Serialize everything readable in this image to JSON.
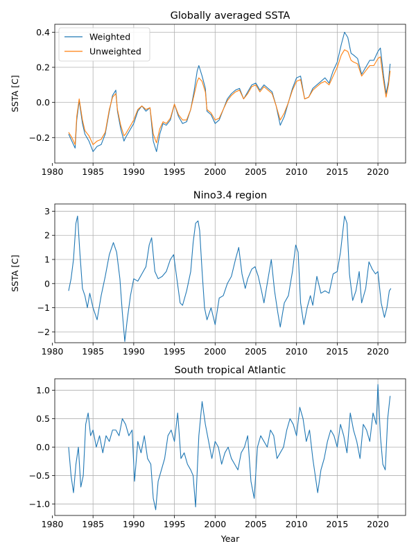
{
  "colors": {
    "weighted": "#1f77b4",
    "unweighted": "#ff7f0e",
    "grid": "#b0b0b0"
  },
  "chart_data": [
    {
      "type": "line",
      "title": "Globally averaged SSTA",
      "xlabel": "",
      "ylabel": "SSTA [C]",
      "xlim": [
        1980.3,
        2023.4
      ],
      "ylim": [
        -0.345,
        0.445
      ],
      "xticks": [
        1980,
        1985,
        1990,
        1995,
        2000,
        2005,
        2010,
        2015,
        2020
      ],
      "xtick_labels": [
        "1980",
        "1985",
        "1990",
        "1995",
        "2000",
        "2005",
        "2010",
        "2015",
        "2020"
      ],
      "yticks": [
        -0.2,
        0.0,
        0.2,
        0.4
      ],
      "ytick_labels": [
        "−0.2",
        "0.0",
        "0.2",
        "0.4"
      ],
      "grid": true,
      "legend": "upper-left",
      "series": [
        {
          "name": "Weighted",
          "color": "#1f77b4",
          "x": [
            1982.0,
            1982.4,
            1982.8,
            1983.0,
            1983.3,
            1983.7,
            1984.0,
            1984.5,
            1985.0,
            1985.5,
            1986.0,
            1986.5,
            1987.0,
            1987.4,
            1987.8,
            1988.0,
            1988.4,
            1988.8,
            1989.0,
            1989.5,
            1990.0,
            1990.5,
            1991.0,
            1991.5,
            1992.0,
            1992.4,
            1992.8,
            1993.2,
            1993.6,
            1994.0,
            1994.5,
            1995.0,
            1995.5,
            1996.0,
            1996.5,
            1997.0,
            1997.4,
            1997.8,
            1998.0,
            1998.4,
            1998.8,
            1999.0,
            1999.5,
            2000.0,
            2000.5,
            2001.0,
            2001.5,
            2002.0,
            2002.5,
            2003.0,
            2003.5,
            2004.0,
            2004.5,
            2005.0,
            2005.5,
            2006.0,
            2006.5,
            2007.0,
            2007.5,
            2008.0,
            2008.5,
            2009.0,
            2009.5,
            2010.0,
            2010.5,
            2011.0,
            2011.5,
            2012.0,
            2012.5,
            2013.0,
            2013.5,
            2014.0,
            2014.5,
            2015.0,
            2015.5,
            2015.9,
            2016.3,
            2016.7,
            2017.0,
            2017.5,
            2018.0,
            2018.5,
            2019.0,
            2019.5,
            2020.0,
            2020.3,
            2020.7,
            2021.0,
            2021.3,
            2021.5
          ],
          "y": [
            -0.18,
            -0.22,
            -0.26,
            -0.1,
            0.01,
            -0.12,
            -0.18,
            -0.22,
            -0.28,
            -0.25,
            -0.24,
            -0.18,
            -0.05,
            0.04,
            0.07,
            -0.05,
            -0.15,
            -0.22,
            -0.2,
            -0.16,
            -0.12,
            -0.05,
            -0.02,
            -0.05,
            -0.03,
            -0.22,
            -0.28,
            -0.18,
            -0.12,
            -0.13,
            -0.1,
            -0.01,
            -0.08,
            -0.12,
            -0.11,
            -0.04,
            0.06,
            0.18,
            0.21,
            0.15,
            0.08,
            -0.05,
            -0.07,
            -0.12,
            -0.1,
            -0.04,
            0.02,
            0.05,
            0.07,
            0.08,
            0.02,
            0.06,
            0.1,
            0.11,
            0.07,
            0.1,
            0.08,
            0.06,
            -0.02,
            -0.13,
            -0.08,
            0.0,
            0.08,
            0.14,
            0.15,
            0.02,
            0.03,
            0.08,
            0.1,
            0.12,
            0.14,
            0.11,
            0.18,
            0.23,
            0.33,
            0.4,
            0.37,
            0.28,
            0.27,
            0.25,
            0.16,
            0.2,
            0.24,
            0.24,
            0.29,
            0.31,
            0.15,
            0.05,
            0.12,
            0.22
          ]
        },
        {
          "name": "Unweighted",
          "color": "#ff7f0e",
          "x": [
            1982.0,
            1982.4,
            1982.8,
            1983.0,
            1983.3,
            1983.7,
            1984.0,
            1984.5,
            1985.0,
            1985.5,
            1986.0,
            1986.5,
            1987.0,
            1987.4,
            1987.8,
            1988.0,
            1988.4,
            1988.8,
            1989.0,
            1989.5,
            1990.0,
            1990.5,
            1991.0,
            1991.5,
            1992.0,
            1992.4,
            1992.8,
            1993.2,
            1993.6,
            1994.0,
            1994.5,
            1995.0,
            1995.5,
            1996.0,
            1996.5,
            1997.0,
            1997.4,
            1997.8,
            1998.0,
            1998.4,
            1998.8,
            1999.0,
            1999.5,
            2000.0,
            2000.5,
            2001.0,
            2001.5,
            2002.0,
            2002.5,
            2003.0,
            2003.5,
            2004.0,
            2004.5,
            2005.0,
            2005.5,
            2006.0,
            2006.5,
            2007.0,
            2007.5,
            2008.0,
            2008.5,
            2009.0,
            2009.5,
            2010.0,
            2010.5,
            2011.0,
            2011.5,
            2012.0,
            2012.5,
            2013.0,
            2013.5,
            2014.0,
            2014.5,
            2015.0,
            2015.5,
            2015.9,
            2016.3,
            2016.7,
            2017.0,
            2017.5,
            2018.0,
            2018.5,
            2019.0,
            2019.5,
            2020.0,
            2020.3,
            2020.7,
            2021.0,
            2021.3,
            2021.5
          ],
          "y": [
            -0.17,
            -0.2,
            -0.24,
            -0.08,
            0.02,
            -0.1,
            -0.16,
            -0.19,
            -0.24,
            -0.22,
            -0.21,
            -0.17,
            -0.04,
            0.03,
            0.05,
            -0.04,
            -0.13,
            -0.19,
            -0.18,
            -0.14,
            -0.1,
            -0.04,
            -0.02,
            -0.04,
            -0.03,
            -0.18,
            -0.23,
            -0.15,
            -0.11,
            -0.12,
            -0.09,
            -0.01,
            -0.07,
            -0.1,
            -0.1,
            -0.04,
            0.04,
            0.12,
            0.14,
            0.12,
            0.06,
            -0.04,
            -0.06,
            -0.1,
            -0.09,
            -0.04,
            0.01,
            0.04,
            0.06,
            0.07,
            0.02,
            0.05,
            0.09,
            0.1,
            0.06,
            0.09,
            0.07,
            0.05,
            -0.02,
            -0.1,
            -0.06,
            0.0,
            0.07,
            0.12,
            0.13,
            0.02,
            0.03,
            0.07,
            0.09,
            0.11,
            0.12,
            0.1,
            0.15,
            0.2,
            0.27,
            0.3,
            0.29,
            0.24,
            0.23,
            0.22,
            0.15,
            0.18,
            0.21,
            0.21,
            0.25,
            0.26,
            0.12,
            0.03,
            0.1,
            0.18
          ]
        }
      ]
    },
    {
      "type": "line",
      "title": "Nino3.4 region",
      "xlabel": "",
      "ylabel": "SSTA [C]",
      "xlim": [
        1980.3,
        2023.4
      ],
      "ylim": [
        -2.45,
        3.3
      ],
      "xticks": [
        1980,
        1985,
        1990,
        1995,
        2000,
        2005,
        2010,
        2015,
        2020
      ],
      "xtick_labels": [
        "1980",
        "1985",
        "1990",
        "1995",
        "2000",
        "2005",
        "2010",
        "2015",
        "2020"
      ],
      "yticks": [
        -2,
        -1,
        0,
        1,
        2,
        3
      ],
      "ytick_labels": [
        "−2",
        "−1",
        "0",
        "1",
        "2",
        "3"
      ],
      "grid": true,
      "series": [
        {
          "name": "Nino3.4",
          "color": "#1f77b4",
          "x": [
            1982.0,
            1982.3,
            1982.6,
            1982.9,
            1983.1,
            1983.4,
            1983.7,
            1984.0,
            1984.3,
            1984.6,
            1985.0,
            1985.5,
            1986.0,
            1986.5,
            1987.0,
            1987.5,
            1987.9,
            1988.3,
            1988.6,
            1988.9,
            1989.2,
            1989.6,
            1990.0,
            1990.5,
            1991.0,
            1991.5,
            1991.9,
            1992.2,
            1992.6,
            1993.0,
            1993.5,
            1994.0,
            1994.5,
            1994.9,
            1995.3,
            1995.7,
            1996.0,
            1996.5,
            1997.0,
            1997.3,
            1997.6,
            1997.9,
            1998.1,
            1998.4,
            1998.7,
            1999.0,
            1999.5,
            2000.0,
            2000.5,
            2001.0,
            2001.5,
            2002.0,
            2002.5,
            2002.9,
            2003.3,
            2003.7,
            2004.0,
            2004.5,
            2004.9,
            2005.3,
            2005.7,
            2006.0,
            2006.5,
            2006.9,
            2007.3,
            2007.7,
            2008.0,
            2008.5,
            2009.0,
            2009.5,
            2009.9,
            2010.2,
            2010.5,
            2010.9,
            2011.3,
            2011.7,
            2012.0,
            2012.5,
            2013.0,
            2013.5,
            2014.0,
            2014.5,
            2015.0,
            2015.4,
            2015.7,
            2015.9,
            2016.2,
            2016.5,
            2016.9,
            2017.3,
            2017.7,
            2018.0,
            2018.5,
            2018.9,
            2019.3,
            2019.7,
            2020.0,
            2020.4,
            2020.8,
            2021.1,
            2021.4,
            2021.6
          ],
          "y": [
            -0.3,
            0.2,
            1.0,
            2.5,
            2.8,
            1.2,
            -0.2,
            -0.5,
            -1.0,
            -0.4,
            -1.0,
            -1.5,
            -0.5,
            0.3,
            1.2,
            1.7,
            1.3,
            0.2,
            -1.2,
            -2.4,
            -1.5,
            -0.5,
            0.2,
            0.1,
            0.4,
            0.7,
            1.6,
            1.9,
            0.5,
            0.2,
            0.3,
            0.5,
            1.0,
            1.2,
            0.2,
            -0.8,
            -0.9,
            -0.3,
            0.5,
            1.7,
            2.5,
            2.6,
            2.2,
            0.5,
            -1.0,
            -1.5,
            -1.0,
            -1.7,
            -0.6,
            -0.5,
            0.0,
            0.3,
            1.0,
            1.5,
            0.4,
            -0.2,
            0.2,
            0.6,
            0.7,
            0.3,
            -0.3,
            -0.8,
            0.2,
            1.0,
            -0.3,
            -1.2,
            -1.8,
            -0.8,
            -0.5,
            0.5,
            1.6,
            1.3,
            -0.8,
            -1.7,
            -1.0,
            -0.5,
            -0.9,
            0.3,
            -0.4,
            -0.3,
            -0.4,
            0.4,
            0.5,
            1.3,
            2.2,
            2.8,
            2.5,
            0.4,
            -0.7,
            -0.3,
            0.5,
            -0.8,
            -0.2,
            0.9,
            0.6,
            0.4,
            0.5,
            -0.8,
            -1.4,
            -1.0,
            -0.3,
            -0.2
          ]
        }
      ]
    },
    {
      "type": "line",
      "title": "South tropical Atlantic",
      "xlabel": "Year",
      "ylabel": "",
      "xlim": [
        1980.3,
        2023.4
      ],
      "ylim": [
        -1.2,
        1.2
      ],
      "xticks": [
        1980,
        1985,
        1990,
        1995,
        2000,
        2005,
        2010,
        2015,
        2020
      ],
      "xtick_labels": [
        "1980",
        "1985",
        "1990",
        "1995",
        "2000",
        "2005",
        "2010",
        "2015",
        "2020"
      ],
      "yticks": [
        -1.0,
        -0.5,
        0.0,
        0.5,
        1.0
      ],
      "ytick_labels": [
        "−1.0",
        "−0.5",
        "0.0",
        "0.5",
        "1.0"
      ],
      "grid": true,
      "series": [
        {
          "name": "South tropical Atlantic",
          "color": "#1f77b4",
          "x": [
            1982.0,
            1982.3,
            1982.6,
            1982.9,
            1983.2,
            1983.5,
            1983.8,
            1984.1,
            1984.4,
            1984.7,
            1985.0,
            1985.4,
            1985.8,
            1986.2,
            1986.6,
            1987.0,
            1987.4,
            1987.8,
            1988.2,
            1988.6,
            1989.0,
            1989.4,
            1989.8,
            1990.1,
            1990.5,
            1990.9,
            1991.3,
            1991.7,
            1992.1,
            1992.4,
            1992.7,
            1993.0,
            1993.4,
            1993.8,
            1994.2,
            1994.6,
            1995.0,
            1995.4,
            1995.8,
            1996.2,
            1996.6,
            1997.0,
            1997.3,
            1997.6,
            1998.0,
            1998.4,
            1998.8,
            1999.2,
            1999.6,
            2000.0,
            2000.4,
            2000.8,
            2001.2,
            2001.6,
            2002.0,
            2002.4,
            2002.8,
            2003.2,
            2003.6,
            2004.0,
            2004.4,
            2004.8,
            2005.2,
            2005.6,
            2006.0,
            2006.4,
            2006.8,
            2007.2,
            2007.6,
            2008.0,
            2008.4,
            2008.8,
            2009.2,
            2009.6,
            2010.0,
            2010.4,
            2010.8,
            2011.2,
            2011.6,
            2012.0,
            2012.3,
            2012.6,
            2013.0,
            2013.4,
            2013.8,
            2014.2,
            2014.6,
            2015.0,
            2015.4,
            2015.8,
            2016.2,
            2016.6,
            2017.0,
            2017.4,
            2017.8,
            2018.2,
            2018.6,
            2019.0,
            2019.4,
            2019.8,
            2020.0,
            2020.3,
            2020.6,
            2020.9,
            2021.2,
            2021.5
          ],
          "y": [
            0.0,
            -0.5,
            -0.8,
            -0.3,
            0.0,
            -0.7,
            -0.5,
            0.4,
            0.6,
            0.2,
            0.3,
            0.0,
            0.2,
            -0.1,
            0.2,
            0.1,
            0.3,
            0.3,
            0.2,
            0.5,
            0.4,
            0.2,
            0.3,
            -0.6,
            0.1,
            -0.1,
            0.2,
            -0.2,
            -0.3,
            -0.9,
            -1.1,
            -0.6,
            -0.4,
            -0.2,
            0.2,
            0.3,
            0.1,
            0.6,
            -0.2,
            -0.1,
            -0.3,
            -0.4,
            -0.5,
            -1.05,
            0.2,
            0.8,
            0.4,
            0.1,
            -0.2,
            0.1,
            0.0,
            -0.3,
            -0.1,
            0.0,
            -0.2,
            -0.3,
            -0.4,
            -0.1,
            0.0,
            0.2,
            -0.6,
            -0.9,
            0.0,
            0.2,
            0.1,
            0.0,
            0.3,
            0.2,
            -0.2,
            -0.1,
            0.0,
            0.3,
            0.5,
            0.4,
            0.2,
            0.7,
            0.5,
            0.1,
            0.3,
            -0.2,
            -0.5,
            -0.8,
            -0.4,
            -0.2,
            0.1,
            0.3,
            0.2,
            0.0,
            0.4,
            0.2,
            -0.1,
            0.6,
            0.3,
            0.1,
            -0.2,
            0.4,
            0.3,
            0.1,
            0.6,
            0.4,
            1.1,
            0.2,
            -0.3,
            -0.4,
            0.5,
            0.9
          ]
        }
      ]
    }
  ]
}
